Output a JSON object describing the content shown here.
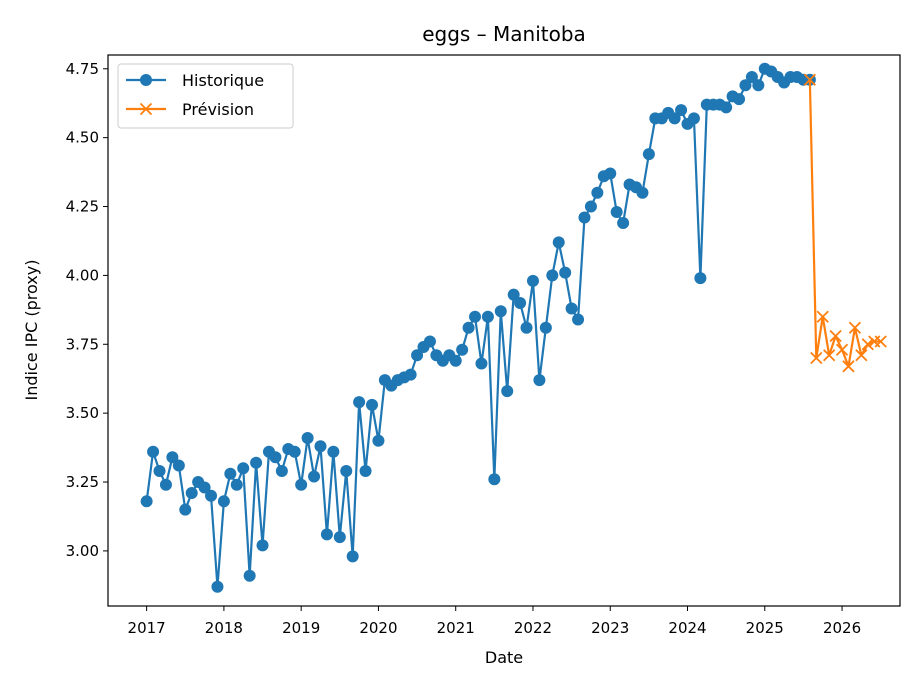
{
  "chart_data": {
    "type": "line",
    "title": "eggs – Manitoba",
    "xlabel": "Date",
    "ylabel": "Indice IPC (proxy)",
    "xlim": [
      "2016-07-01",
      "2026-10-01"
    ],
    "ylim": [
      2.8,
      4.8
    ],
    "x_ticks": [
      "2017",
      "2018",
      "2019",
      "2020",
      "2021",
      "2022",
      "2023",
      "2024",
      "2025",
      "2026"
    ],
    "y_ticks": [
      "3.00",
      "3.25",
      "3.50",
      "3.75",
      "4.00",
      "4.25",
      "4.50",
      "4.75"
    ],
    "grid": false,
    "legend_position": "top-left",
    "series": [
      {
        "name": "Historique",
        "color": "#1f77b4",
        "marker": "circle",
        "x": [
          "2017-01",
          "2017-02",
          "2017-03",
          "2017-04",
          "2017-05",
          "2017-06",
          "2017-07",
          "2017-08",
          "2017-09",
          "2017-10",
          "2017-11",
          "2017-12",
          "2018-01",
          "2018-02",
          "2018-03",
          "2018-04",
          "2018-05",
          "2018-06",
          "2018-07",
          "2018-08",
          "2018-09",
          "2018-10",
          "2018-11",
          "2018-12",
          "2019-01",
          "2019-02",
          "2019-03",
          "2019-04",
          "2019-05",
          "2019-06",
          "2019-07",
          "2019-08",
          "2019-09",
          "2019-10",
          "2019-11",
          "2019-12",
          "2020-01",
          "2020-02",
          "2020-03",
          "2020-04",
          "2020-05",
          "2020-06",
          "2020-07",
          "2020-08",
          "2020-09",
          "2020-10",
          "2020-11",
          "2020-12",
          "2021-01",
          "2021-02",
          "2021-03",
          "2021-04",
          "2021-05",
          "2021-06",
          "2021-07",
          "2021-08",
          "2021-09",
          "2021-10",
          "2021-11",
          "2021-12",
          "2022-01",
          "2022-02",
          "2022-03",
          "2022-04",
          "2022-05",
          "2022-06",
          "2022-07",
          "2022-08",
          "2022-09",
          "2022-10",
          "2022-11",
          "2022-12",
          "2023-01",
          "2023-02",
          "2023-03",
          "2023-04",
          "2023-05",
          "2023-06",
          "2023-07",
          "2023-08",
          "2023-09",
          "2023-10",
          "2023-11",
          "2023-12",
          "2024-01",
          "2024-02",
          "2024-03",
          "2024-04",
          "2024-05",
          "2024-06",
          "2024-07",
          "2024-08",
          "2024-09",
          "2024-10",
          "2024-11",
          "2024-12",
          "2025-01",
          "2025-02",
          "2025-03",
          "2025-04",
          "2025-05",
          "2025-06",
          "2025-07",
          "2025-08"
        ],
        "values": [
          3.18,
          3.36,
          3.29,
          3.24,
          3.34,
          3.31,
          3.15,
          3.21,
          3.25,
          3.23,
          3.2,
          2.87,
          3.18,
          3.28,
          3.24,
          3.3,
          2.91,
          3.32,
          3.02,
          3.36,
          3.34,
          3.29,
          3.37,
          3.36,
          3.24,
          3.41,
          3.27,
          3.38,
          3.06,
          3.36,
          3.05,
          3.29,
          2.98,
          3.54,
          3.29,
          3.53,
          3.4,
          3.62,
          3.6,
          3.62,
          3.63,
          3.64,
          3.71,
          3.74,
          3.76,
          3.71,
          3.69,
          3.71,
          3.69,
          3.73,
          3.81,
          3.85,
          3.68,
          3.85,
          3.26,
          3.87,
          3.58,
          3.93,
          3.9,
          3.81,
          3.98,
          3.62,
          3.81,
          4.0,
          4.12,
          4.01,
          3.88,
          3.84,
          4.21,
          4.25,
          4.3,
          4.36,
          4.37,
          4.23,
          4.19,
          4.33,
          4.32,
          4.3,
          4.44,
          4.57,
          4.57,
          4.59,
          4.57,
          4.6,
          4.55,
          4.57,
          3.99,
          4.62,
          4.62,
          4.62,
          4.61,
          4.65,
          4.64,
          4.69,
          4.72,
          4.69,
          4.75,
          4.74,
          4.72,
          4.7,
          4.72,
          4.72,
          4.71,
          4.71
        ]
      },
      {
        "name": "Prévision",
        "color": "#ff7f0e",
        "marker": "x",
        "x": [
          "2025-08",
          "2025-09",
          "2025-10",
          "2025-11",
          "2025-12",
          "2026-01",
          "2026-02",
          "2026-03",
          "2026-04",
          "2026-05",
          "2026-06",
          "2026-07"
        ],
        "values": [
          4.71,
          3.7,
          3.85,
          3.71,
          3.78,
          3.73,
          3.67,
          3.81,
          3.71,
          3.75,
          3.76,
          3.76
        ]
      }
    ]
  }
}
